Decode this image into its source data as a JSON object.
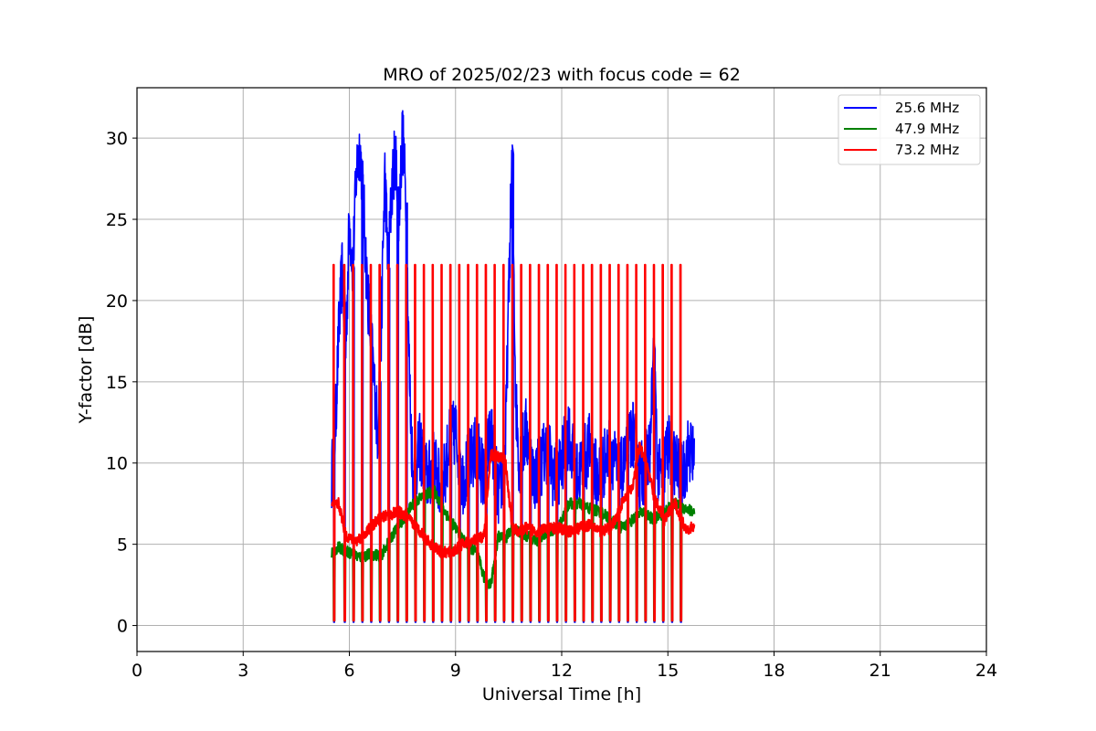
{
  "chart_data": {
    "type": "line",
    "title": "MRO of 2025/02/23 with focus code = 62",
    "xlabel": "Universal Time [h]",
    "ylabel": "Y-factor [dB]",
    "xlim": [
      0,
      24
    ],
    "ylim": [
      -1.6,
      33.1
    ],
    "x_ticks": [
      0,
      3,
      6,
      9,
      12,
      15,
      18,
      21,
      24
    ],
    "y_ticks": [
      0,
      5,
      10,
      15,
      20,
      25,
      30
    ],
    "grid": true,
    "legend_position": "top-right",
    "time_range": [
      5.5,
      15.75
    ],
    "spike_times": [
      5.55,
      5.85,
      6.1,
      6.35,
      6.6,
      6.85,
      7.1,
      7.35,
      7.6,
      7.85,
      8.1,
      8.35,
      8.6,
      8.85,
      9.1,
      9.35,
      9.6,
      9.85,
      10.1,
      10.35,
      10.6,
      10.85,
      11.1,
      11.35,
      11.6,
      11.85,
      12.1,
      12.35,
      12.6,
      12.85,
      13.1,
      13.35,
      13.6,
      13.85,
      14.1,
      14.35,
      14.6,
      14.85,
      15.1,
      15.35
    ],
    "series": [
      {
        "name": "25.6 MHz",
        "color": "#0000ff",
        "x": [
          5.5,
          5.6,
          5.7,
          5.8,
          5.9,
          6.0,
          6.1,
          6.2,
          6.3,
          6.4,
          6.5,
          6.6,
          6.7,
          6.8,
          6.9,
          7.0,
          7.1,
          7.2,
          7.3,
          7.4,
          7.5,
          7.6,
          7.7,
          7.8,
          7.9,
          8.0,
          8.2,
          8.4,
          8.6,
          8.8,
          9.0,
          9.2,
          9.4,
          9.6,
          9.8,
          10.0,
          10.2,
          10.4,
          10.5,
          10.6,
          10.7,
          10.8,
          10.9,
          11.0,
          11.2,
          11.4,
          11.6,
          11.8,
          12.0,
          12.2,
          12.4,
          12.6,
          12.8,
          13.0,
          13.2,
          13.4,
          13.6,
          13.8,
          14.0,
          14.2,
          14.4,
          14.5,
          14.6,
          14.7,
          14.8,
          15.0,
          15.2,
          15.4,
          15.6,
          15.75
        ],
        "y": [
          9,
          12,
          18,
          22,
          17,
          25,
          22,
          28,
          29.5,
          26,
          21,
          18,
          15,
          12,
          18,
          28,
          22,
          27,
          29,
          25,
          30.5,
          26,
          15,
          9,
          10,
          11,
          9,
          10,
          8,
          11,
          12,
          9,
          10,
          11,
          9,
          12,
          8,
          10,
          20,
          29,
          14,
          10,
          11,
          12,
          9,
          10,
          11,
          9,
          10,
          12,
          9,
          10,
          11,
          9,
          10,
          11,
          9,
          10,
          12,
          9,
          10,
          11,
          17,
          10,
          9,
          11,
          10,
          9,
          11,
          10
        ]
      },
      {
        "name": "47.9 MHz",
        "color": "#008000",
        "x": [
          5.5,
          5.7,
          6.0,
          6.3,
          6.6,
          6.9,
          7.2,
          7.5,
          7.8,
          8.1,
          8.4,
          8.7,
          9.0,
          9.3,
          9.6,
          9.8,
          10.0,
          10.2,
          10.4,
          10.6,
          10.8,
          11.0,
          11.3,
          11.6,
          11.9,
          12.2,
          12.5,
          12.8,
          13.1,
          13.4,
          13.7,
          14.0,
          14.3,
          14.6,
          14.9,
          15.2,
          15.5,
          15.75
        ],
        "y": [
          4.5,
          4.8,
          4.5,
          4.2,
          4.4,
          4.3,
          5.5,
          6.5,
          7.5,
          8.0,
          8.3,
          7.0,
          6.0,
          5.0,
          4.5,
          3.0,
          2.5,
          5.5,
          5.3,
          6.0,
          5.8,
          5.5,
          5.2,
          5.8,
          6.0,
          7.5,
          7.5,
          7.2,
          7.0,
          6.5,
          6.0,
          6.5,
          7.0,
          6.5,
          7.0,
          7.5,
          7.2,
          7.0
        ]
      },
      {
        "name": "73.2 MHz",
        "color": "#ff0000",
        "x": [
          5.5,
          5.7,
          5.9,
          6.2,
          6.5,
          6.8,
          7.1,
          7.4,
          7.7,
          8.0,
          8.3,
          8.6,
          8.9,
          9.2,
          9.5,
          9.8,
          10.0,
          10.2,
          10.4,
          10.6,
          10.8,
          11.0,
          11.3,
          11.6,
          11.9,
          12.2,
          12.5,
          12.8,
          13.1,
          13.4,
          13.7,
          14.0,
          14.2,
          14.4,
          14.6,
          14.9,
          15.2,
          15.5,
          15.75
        ],
        "y": [
          7.3,
          7.5,
          5.5,
          5.2,
          5.8,
          6.5,
          6.8,
          7.0,
          6.5,
          5.8,
          5.0,
          4.5,
          4.5,
          5.0,
          5.2,
          5.5,
          10.5,
          10.4,
          10.3,
          6.0,
          5.8,
          6.0,
          5.8,
          6.0,
          6.0,
          5.8,
          6.0,
          6.2,
          5.8,
          6.0,
          7.5,
          8.5,
          11.0,
          10.0,
          8.0,
          6.5,
          7.5,
          6.0,
          6.0
        ]
      }
    ]
  }
}
